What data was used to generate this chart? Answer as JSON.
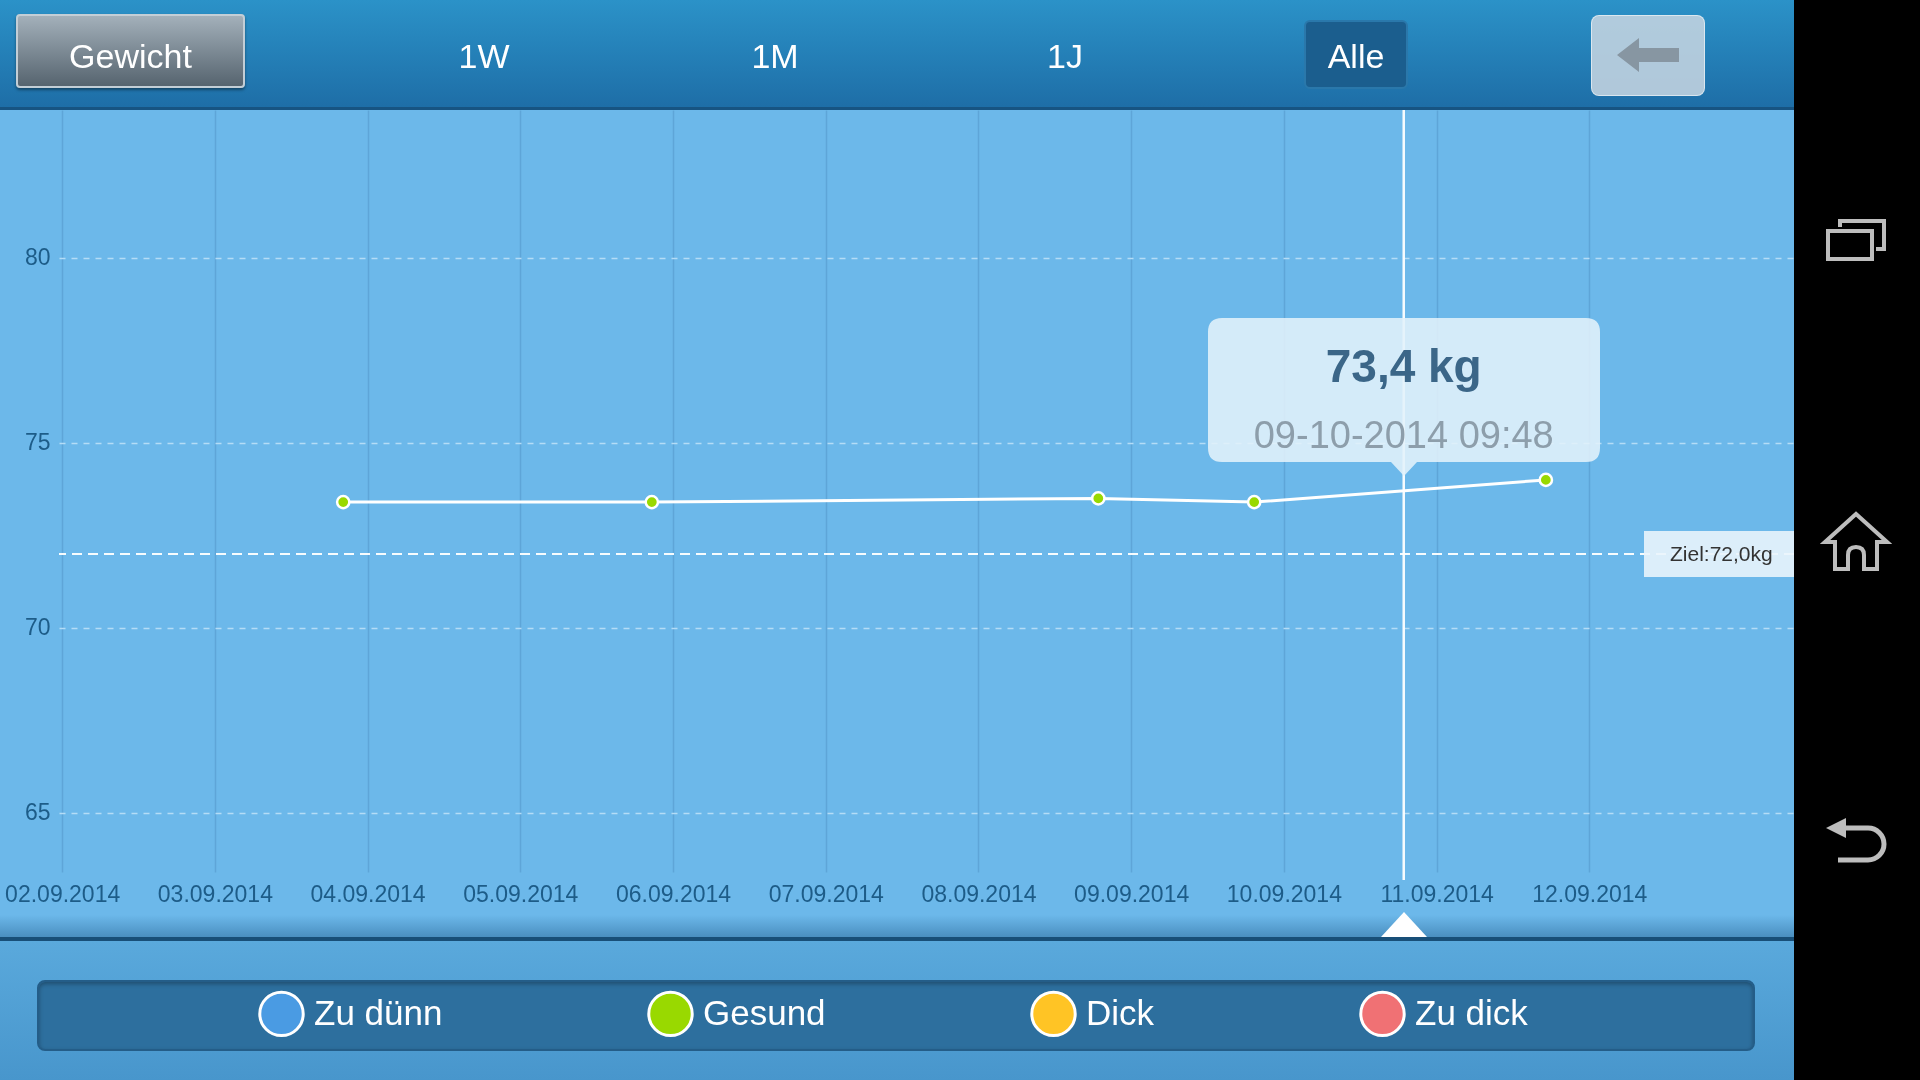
{
  "chart_data": {
    "type": "line",
    "title": "Gewicht",
    "x": [
      "2014-09-03T20:10",
      "2014-09-05T20:40",
      "2014-09-08T18:50",
      "2014-09-09T19:20",
      "2014-09-11T17:10"
    ],
    "series": [
      {
        "color": "#ffffff",
        "values": [
          73.4,
          73.4,
          73.5,
          73.4,
          74.0
        ]
      },
      {
        "type": "scatter",
        "name": "Zu dünn",
        "color": "#4a9be3",
        "marker": "circle",
        "values": [
          null,
          null,
          null,
          null,
          null
        ]
      },
      {
        "type": "scatter",
        "name": "Gesund",
        "color": "#99d900",
        "marker": "circle",
        "values": [
          73.4,
          73.4,
          73.5,
          73.4,
          74.0
        ]
      },
      {
        "type": "scatter",
        "name": "Dick",
        "color": "#ffc425",
        "marker": "circle",
        "values": [
          null,
          null,
          null,
          null,
          null
        ]
      },
      {
        "type": "scatter",
        "name": "Zu dick",
        "color": "#f07174",
        "marker": "circle",
        "values": [
          null,
          null,
          null,
          null,
          null
        ]
      }
    ],
    "xlim": [
      "2014-09-01T23:30",
      "2014-09-13T08:10"
    ],
    "xticks": [
      {
        "value": "2014-09-02",
        "label": "02.09.2014"
      },
      {
        "value": "2014-09-03",
        "label": "03.09.2014"
      },
      {
        "value": "2014-09-04",
        "label": "04.09.2014"
      },
      {
        "value": "2014-09-05",
        "label": "05.09.2014"
      },
      {
        "value": "2014-09-06",
        "label": "06.09.2014"
      },
      {
        "value": "2014-09-07",
        "label": "07.09.2014"
      },
      {
        "value": "2014-09-08",
        "label": "08.09.2014"
      },
      {
        "value": "2014-09-09",
        "label": "09.09.2014"
      },
      {
        "value": "2014-09-10",
        "label": "10.09.2014"
      },
      {
        "value": "2014-09-11",
        "label": "11.09.2014"
      },
      {
        "value": "2014-09-12",
        "label": "12.09.2014"
      }
    ],
    "ylim": [
      63.4,
      84
    ],
    "yticks": [
      65,
      70,
      75,
      80
    ],
    "grid": true,
    "legend": "bottom",
    "line_style": "solid",
    "ref_lines": [
      {
        "axis": "y",
        "value": 72.0,
        "label": "Ziel:72,0kg",
        "color": "#ffffff",
        "line_style": "dashed"
      },
      {
        "axis": "x",
        "value": "2014-09-10T18:50",
        "color": "#ffffff",
        "line_style": "solid"
      }
    ],
    "annotations": [
      "1W",
      "1M",
      "1J",
      "Alle",
      "73,4 kg",
      "09-10-2014 09:48"
    ]
  }
}
